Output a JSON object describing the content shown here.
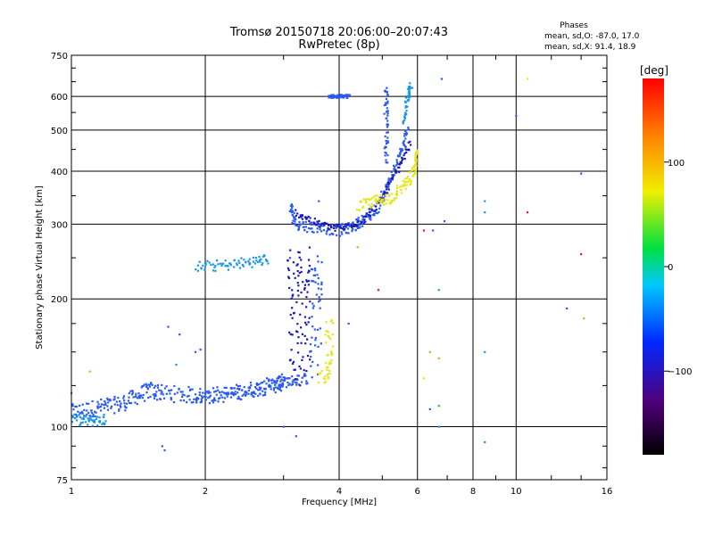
{
  "chart_data": {
    "type": "scatter",
    "title": "Tromsø 20150718 20:06:00–20:07:43",
    "subtitle": "RwPretec (8p)",
    "xlabel": "Frequency [MHz]",
    "ylabel": "Stationary phase Virtual Height [km]",
    "xscale": "log",
    "yscale": "log",
    "xlim": [
      1,
      16
    ],
    "ylim": [
      75,
      750
    ],
    "xticks": [
      1,
      2,
      4,
      6,
      8,
      10,
      16
    ],
    "xtick_labels": [
      "1",
      "2",
      "4",
      "6",
      "8",
      "10",
      "16"
    ],
    "yticks": [
      75,
      100,
      200,
      300,
      400,
      500,
      600,
      750
    ],
    "ytick_labels": [
      "75",
      "100",
      "200",
      "300",
      "400",
      "500",
      "600",
      "750"
    ],
    "grid": true,
    "phases_stats": {
      "heading": "Phases",
      "line_o": "mean, sd,O: -87.0, 17.0",
      "line_x": "mean, sd,X:  91.4, 18.9"
    },
    "colorbar": {
      "label": "[deg]",
      "min": -180,
      "max": 180,
      "ticks": [
        100,
        0,
        -100
      ],
      "tick_labels": [
        "100",
        "0",
        "−100"
      ]
    },
    "colors": {
      "deep_blue": "#1a1ab4",
      "blue": "#2a5af0",
      "cyan_blue": "#1a96e6",
      "yellow": "#e6e61a",
      "orange": "#f0a020",
      "red": "#e61a1a",
      "green": "#20c040"
    },
    "traces": [
      {
        "points": [
          [
            1.0,
            108
          ],
          [
            1.1,
            110
          ],
          [
            1.2,
            112
          ],
          [
            1.3,
            113
          ],
          [
            1.4,
            118
          ],
          [
            1.5,
            122
          ],
          [
            1.6,
            120
          ],
          [
            1.8,
            119
          ],
          [
            2.0,
            118
          ],
          [
            2.3,
            120
          ],
          [
            2.6,
            123
          ],
          [
            2.9,
            126
          ],
          [
            3.0,
            128
          ]
        ],
        "color": "blue",
        "jitter": 0.045
      },
      {
        "points": [
          [
            1.0,
            104
          ],
          [
            1.1,
            103
          ],
          [
            1.2,
            104
          ]
        ],
        "color": "cyan_blue",
        "jitter": 0.03
      },
      {
        "points": [
          [
            1.9,
            118
          ],
          [
            2.2,
            119
          ],
          [
            2.5,
            122
          ],
          [
            2.8,
            126
          ],
          [
            3.1,
            128
          ],
          [
            3.4,
            130
          ]
        ],
        "color": "blue",
        "jitter": 0.03
      },
      {
        "points": [
          [
            1.9,
            238
          ],
          [
            2.2,
            240
          ],
          [
            2.5,
            244
          ],
          [
            2.8,
            248
          ]
        ],
        "color": "cyan_blue",
        "jitter": 0.03
      },
      {
        "points": [
          [
            3.15,
            130
          ],
          [
            3.15,
            200
          ],
          [
            3.15,
            260
          ]
        ],
        "color": "deep_blue",
        "jitter": 0.05,
        "xjitter": 0.03
      },
      {
        "points": [
          [
            3.35,
            130
          ],
          [
            3.35,
            200
          ],
          [
            3.35,
            260
          ]
        ],
        "color": "deep_blue",
        "jitter": 0.05,
        "xjitter": 0.03
      },
      {
        "points": [
          [
            3.55,
            135
          ],
          [
            3.55,
            200
          ],
          [
            3.55,
            250
          ]
        ],
        "color": "blue",
        "jitter": 0.05,
        "xjitter": 0.03
      },
      {
        "points": [
          [
            3.65,
            130
          ],
          [
            3.8,
            140
          ],
          [
            3.8,
            180
          ]
        ],
        "color": "yellow",
        "jitter": 0.04,
        "xjitter": 0.02
      },
      {
        "points": [
          [
            3.1,
            330
          ],
          [
            3.2,
            300
          ],
          [
            3.5,
            295
          ],
          [
            4.0,
            290
          ],
          [
            4.3,
            296
          ],
          [
            4.6,
            310
          ],
          [
            4.9,
            330
          ],
          [
            5.2,
            380
          ],
          [
            5.5,
            440
          ],
          [
            5.7,
            500
          ]
        ],
        "color": "blue",
        "jitter": 0.03
      },
      {
        "points": [
          [
            3.2,
            320
          ],
          [
            3.6,
            300
          ],
          [
            4.0,
            293
          ],
          [
            4.5,
            305
          ],
          [
            5.0,
            345
          ],
          [
            5.4,
            400
          ],
          [
            5.8,
            470
          ]
        ],
        "color": "deep_blue",
        "jitter": 0.02
      },
      {
        "points": [
          [
            4.4,
            330
          ],
          [
            4.8,
            340
          ],
          [
            5.2,
            345
          ],
          [
            5.6,
            370
          ],
          [
            5.9,
            400
          ],
          [
            6.0,
            440
          ]
        ],
        "color": "yellow",
        "jitter": 0.03
      },
      {
        "points": [
          [
            5.1,
            420
          ],
          [
            5.1,
            520
          ],
          [
            5.1,
            640
          ]
        ],
        "color": "blue",
        "jitter": 0.02,
        "xjitter": 0.01
      },
      {
        "points": [
          [
            3.8,
            600
          ],
          [
            4.0,
            600
          ],
          [
            4.2,
            600
          ]
        ],
        "color": "blue",
        "jitter": 0.01
      },
      {
        "points": [
          [
            5.6,
            520
          ],
          [
            5.7,
            600
          ],
          [
            5.8,
            640
          ]
        ],
        "color": "cyan_blue",
        "jitter": 0.02
      }
    ],
    "scattered_points": [
      [
        1.1,
        135,
        "orange"
      ],
      [
        1.0,
        120,
        "cyan_blue"
      ],
      [
        1.6,
        90,
        "blue"
      ],
      [
        1.62,
        88,
        "blue"
      ],
      [
        1.65,
        172,
        "blue"
      ],
      [
        1.75,
        165,
        "blue"
      ],
      [
        1.9,
        150,
        "blue"
      ],
      [
        1.95,
        152,
        "blue"
      ],
      [
        1.72,
        140,
        "cyan_blue"
      ],
      [
        3.0,
        100,
        "blue"
      ],
      [
        3.1,
        250,
        "blue"
      ],
      [
        3.3,
        310,
        "blue"
      ],
      [
        3.6,
        340,
        "blue"
      ],
      [
        4.2,
        175,
        "blue"
      ],
      [
        4.4,
        265,
        "orange"
      ],
      [
        4.9,
        210,
        "red"
      ],
      [
        6.2,
        290,
        "red"
      ],
      [
        6.5,
        290,
        "blue"
      ],
      [
        6.7,
        210,
        "cyan_blue"
      ],
      [
        6.4,
        150,
        "orange"
      ],
      [
        6.7,
        145,
        "orange"
      ],
      [
        6.2,
        130,
        "yellow"
      ],
      [
        6.4,
        110,
        "blue"
      ],
      [
        6.7,
        112,
        "green"
      ],
      [
        6.7,
        100,
        "cyan_blue"
      ],
      [
        6.8,
        660,
        "blue"
      ],
      [
        6.9,
        305,
        "blue"
      ],
      [
        8.5,
        340,
        "cyan_blue"
      ],
      [
        8.5,
        320,
        "cyan_blue"
      ],
      [
        8.5,
        150,
        "cyan_blue"
      ],
      [
        8.5,
        92,
        "cyan_blue"
      ],
      [
        10.0,
        540,
        "blue"
      ],
      [
        10.6,
        660,
        "yellow"
      ],
      [
        10.6,
        320,
        "red"
      ],
      [
        14.0,
        395,
        "blue"
      ],
      [
        14.0,
        255,
        "red"
      ],
      [
        13.0,
        190,
        "blue"
      ],
      [
        14.2,
        180,
        "orange"
      ],
      [
        3.2,
        95,
        "blue"
      ]
    ]
  }
}
